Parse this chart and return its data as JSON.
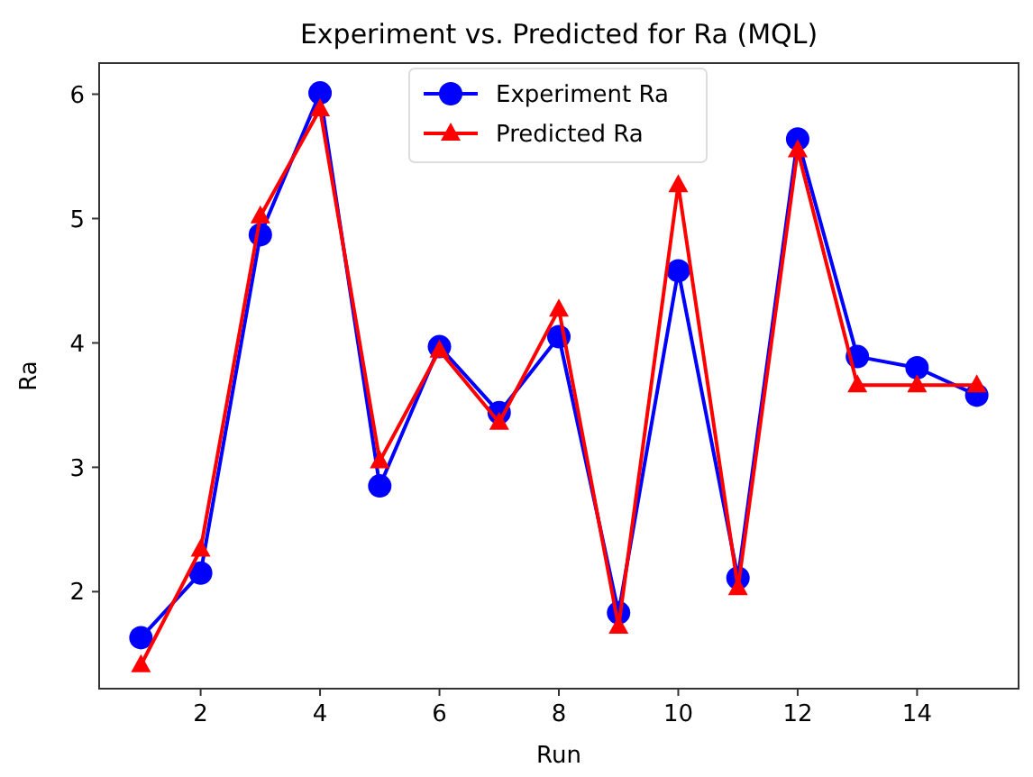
{
  "chart_data": {
    "type": "line",
    "title": "Experiment vs. Predicted for Ra (MQL)",
    "xlabel": "Run",
    "ylabel": "Ra",
    "x": [
      1,
      2,
      3,
      4,
      5,
      6,
      7,
      8,
      9,
      10,
      11,
      12,
      13,
      14,
      15
    ],
    "series": [
      {
        "name": "Experiment Ra",
        "color": "#0000ff",
        "marker": "circle",
        "values": [
          1.63,
          2.15,
          4.87,
          6.01,
          2.85,
          3.97,
          3.44,
          4.05,
          1.83,
          4.58,
          2.11,
          5.64,
          3.89,
          3.8,
          3.58
        ]
      },
      {
        "name": "Predicted Ra",
        "color": "#ff0000",
        "marker": "triangle",
        "values": [
          1.41,
          2.34,
          5.02,
          5.88,
          3.05,
          3.94,
          3.36,
          4.27,
          1.72,
          5.27,
          2.03,
          5.55,
          3.66,
          3.66,
          3.66
        ]
      }
    ],
    "xlim": [
      0.3,
      15.7
    ],
    "xticks": [
      2,
      4,
      6,
      8,
      10,
      12,
      14
    ],
    "ylim": [
      1.22,
      6.25
    ],
    "yticks": [
      2,
      3,
      4,
      5,
      6
    ],
    "legend": "top",
    "grid": false,
    "line_style": "solid"
  }
}
